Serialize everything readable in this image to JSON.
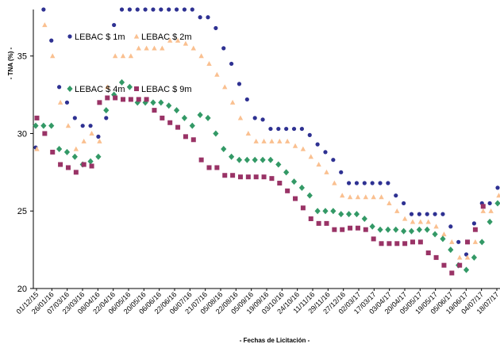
{
  "chart_data": {
    "type": "scatter",
    "xlabel": "- Fechas de Licitación -",
    "ylabel": "- TNA (%) -",
    "ylim": [
      20,
      38
    ],
    "yticks": [
      20,
      25,
      30,
      35
    ],
    "xlim": [
      "2015-12-01",
      "2017-07-18"
    ],
    "xtick_labels": [
      "01/12/15",
      "26/01/16",
      "07/03/16",
      "23/03/16",
      "08/04/16",
      "22/04/16",
      "06/05/16",
      "20/05/16",
      "06/06/16",
      "22/06/16",
      "06/07/16",
      "21/07/16",
      "05/08/16",
      "22/08/16",
      "05/09/16",
      "19/09/16",
      "03/10/16",
      "24/10/16",
      "11/11/16",
      "29/11/16",
      "27/12/16",
      "02/03/17",
      "17/03/17",
      "03/04/17",
      "20/04/17",
      "05/05/17",
      "19/05/17",
      "05/06/17",
      "19/06/17",
      "04/07/17",
      "18/07/17"
    ],
    "grid": false,
    "series": [
      {
        "name": "LEBAC $ 1m",
        "color": "#2E3192",
        "marker": "circle",
        "points": [
          [
            0,
            29.1
          ],
          [
            1,
            38.0
          ],
          [
            2,
            36.0
          ],
          [
            3,
            33.0
          ],
          [
            4,
            32.0
          ],
          [
            5,
            31.0
          ],
          [
            6,
            30.5
          ],
          [
            7,
            30.5
          ],
          [
            8,
            29.8
          ],
          [
            9,
            31.0
          ],
          [
            10,
            37.0
          ],
          [
            11,
            38.0
          ],
          [
            12,
            38.0
          ],
          [
            13,
            38.0
          ],
          [
            14,
            38.0
          ],
          [
            15,
            38.0
          ],
          [
            16,
            38.0
          ],
          [
            17,
            38.0
          ],
          [
            18,
            38.0
          ],
          [
            19,
            38.0
          ],
          [
            20,
            38.0
          ],
          [
            21,
            37.5
          ],
          [
            22,
            37.5
          ],
          [
            23,
            36.8
          ],
          [
            24,
            35.5
          ],
          [
            25,
            34.5
          ],
          [
            26,
            33.2
          ],
          [
            27,
            32.2
          ],
          [
            28,
            31.0
          ],
          [
            29,
            30.9
          ],
          [
            30,
            30.3
          ],
          [
            31,
            30.3
          ],
          [
            32,
            30.3
          ],
          [
            33,
            30.3
          ],
          [
            34,
            30.3
          ],
          [
            35,
            29.9
          ],
          [
            36,
            29.3
          ],
          [
            37,
            28.8
          ],
          [
            38,
            28.3
          ],
          [
            39,
            27.5
          ],
          [
            40,
            26.8
          ],
          [
            41,
            26.8
          ],
          [
            42,
            26.8
          ],
          [
            43,
            26.8
          ],
          [
            44,
            26.8
          ],
          [
            45,
            26.8
          ],
          [
            46,
            26.0
          ],
          [
            47,
            25.5
          ],
          [
            48,
            24.8
          ],
          [
            49,
            24.8
          ],
          [
            50,
            24.8
          ],
          [
            51,
            24.8
          ],
          [
            52,
            24.8
          ],
          [
            53,
            24.0
          ],
          [
            54,
            23.0
          ],
          [
            55,
            22.2
          ],
          [
            56,
            24.2
          ],
          [
            57,
            25.5
          ],
          [
            58,
            25.5
          ],
          [
            59,
            26.5
          ]
        ]
      },
      {
        "name": "LEBAC $ 2m",
        "color": "#FAC090",
        "marker": "triangle",
        "points": [
          [
            0,
            29.0
          ],
          [
            1,
            37.0
          ],
          [
            2,
            35.0
          ],
          [
            3,
            32.0
          ],
          [
            4,
            30.5
          ],
          [
            5,
            29.0
          ],
          [
            6,
            29.5
          ],
          [
            7,
            30.0
          ],
          [
            8,
            29.5
          ],
          [
            9,
            33.0
          ],
          [
            10,
            35.0
          ],
          [
            11,
            35.0
          ],
          [
            12,
            35.0
          ],
          [
            13,
            35.5
          ],
          [
            14,
            35.5
          ],
          [
            15,
            35.5
          ],
          [
            16,
            35.5
          ],
          [
            17,
            36.0
          ],
          [
            18,
            36.0
          ],
          [
            19,
            35.8
          ],
          [
            20,
            35.5
          ],
          [
            21,
            35.0
          ],
          [
            22,
            34.5
          ],
          [
            23,
            33.8
          ],
          [
            24,
            33.0
          ],
          [
            25,
            32.0
          ],
          [
            26,
            31.0
          ],
          [
            27,
            30.0
          ],
          [
            28,
            29.5
          ],
          [
            29,
            29.5
          ],
          [
            30,
            29.5
          ],
          [
            31,
            29.5
          ],
          [
            32,
            29.5
          ],
          [
            33,
            29.2
          ],
          [
            34,
            29.0
          ],
          [
            35,
            28.5
          ],
          [
            36,
            28.0
          ],
          [
            37,
            27.5
          ],
          [
            38,
            26.8
          ],
          [
            39,
            26.0
          ],
          [
            40,
            25.9
          ],
          [
            41,
            25.9
          ],
          [
            42,
            25.9
          ],
          [
            43,
            25.9
          ],
          [
            44,
            25.9
          ],
          [
            45,
            25.5
          ],
          [
            46,
            25.0
          ],
          [
            47,
            24.5
          ],
          [
            48,
            24.3
          ],
          [
            49,
            24.3
          ],
          [
            50,
            24.3
          ],
          [
            51,
            24.0
          ],
          [
            52,
            23.5
          ],
          [
            53,
            23.0
          ],
          [
            54,
            22.0
          ],
          [
            55,
            22.0
          ],
          [
            56,
            23.0
          ],
          [
            57,
            25.0
          ],
          [
            58,
            25.0
          ],
          [
            59,
            26.0
          ]
        ]
      },
      {
        "name": "LEBAC $ 4m",
        "color": "#339966",
        "marker": "diamond",
        "points": [
          [
            0,
            30.5
          ],
          [
            1,
            30.5
          ],
          [
            2,
            30.5
          ],
          [
            3,
            29.0
          ],
          [
            4,
            28.8
          ],
          [
            5,
            28.5
          ],
          [
            6,
            28.0
          ],
          [
            7,
            28.2
          ],
          [
            8,
            28.5
          ],
          [
            9,
            31.5
          ],
          [
            10,
            32.5
          ],
          [
            11,
            33.3
          ],
          [
            12,
            33.0
          ],
          [
            13,
            32.0
          ],
          [
            14,
            32.0
          ],
          [
            15,
            32.0
          ],
          [
            16,
            32.0
          ],
          [
            17,
            31.8
          ],
          [
            18,
            31.5
          ],
          [
            19,
            31.0
          ],
          [
            20,
            30.5
          ],
          [
            21,
            31.2
          ],
          [
            22,
            31.0
          ],
          [
            23,
            30.0
          ],
          [
            24,
            29.0
          ],
          [
            25,
            28.5
          ],
          [
            26,
            28.3
          ],
          [
            27,
            28.3
          ],
          [
            28,
            28.3
          ],
          [
            29,
            28.3
          ],
          [
            30,
            28.3
          ],
          [
            31,
            28.0
          ],
          [
            32,
            27.5
          ],
          [
            33,
            26.9
          ],
          [
            34,
            26.5
          ],
          [
            35,
            26.0
          ],
          [
            36,
            25.0
          ],
          [
            37,
            25.0
          ],
          [
            38,
            25.0
          ],
          [
            39,
            24.8
          ],
          [
            40,
            24.8
          ],
          [
            41,
            24.8
          ],
          [
            42,
            24.5
          ],
          [
            43,
            24.0
          ],
          [
            44,
            23.8
          ],
          [
            45,
            23.8
          ],
          [
            46,
            23.8
          ],
          [
            47,
            23.7
          ],
          [
            48,
            23.7
          ],
          [
            49,
            23.8
          ],
          [
            50,
            23.8
          ],
          [
            51,
            23.5
          ],
          [
            52,
            23.2
          ],
          [
            53,
            22.5
          ],
          [
            54,
            21.5
          ],
          [
            55,
            21.2
          ],
          [
            56,
            22.0
          ],
          [
            57,
            23.0
          ],
          [
            58,
            24.3
          ],
          [
            59,
            25.5
          ]
        ]
      },
      {
        "name": "LEBAC $ 9m",
        "color": "#993366",
        "marker": "square",
        "points": [
          [
            0,
            31.0
          ],
          [
            1,
            30.0
          ],
          [
            2,
            28.8
          ],
          [
            3,
            28.0
          ],
          [
            4,
            27.8
          ],
          [
            5,
            27.5
          ],
          [
            6,
            28.0
          ],
          [
            7,
            27.9
          ],
          [
            8,
            32.0
          ],
          [
            9,
            32.3
          ],
          [
            10,
            32.3
          ],
          [
            11,
            32.2
          ],
          [
            12,
            32.2
          ],
          [
            13,
            32.2
          ],
          [
            14,
            32.2
          ],
          [
            15,
            31.5
          ],
          [
            16,
            31.0
          ],
          [
            17,
            30.7
          ],
          [
            18,
            30.4
          ],
          [
            19,
            29.8
          ],
          [
            20,
            29.6
          ],
          [
            21,
            28.3
          ],
          [
            22,
            27.8
          ],
          [
            23,
            27.8
          ],
          [
            24,
            27.3
          ],
          [
            25,
            27.3
          ],
          [
            26,
            27.2
          ],
          [
            27,
            27.2
          ],
          [
            28,
            27.2
          ],
          [
            29,
            27.2
          ],
          [
            30,
            27.1
          ],
          [
            31,
            26.8
          ],
          [
            32,
            26.3
          ],
          [
            33,
            25.8
          ],
          [
            34,
            25.2
          ],
          [
            35,
            24.5
          ],
          [
            36,
            24.2
          ],
          [
            37,
            24.2
          ],
          [
            38,
            23.8
          ],
          [
            39,
            23.8
          ],
          [
            40,
            23.9
          ],
          [
            41,
            23.9
          ],
          [
            42,
            23.8
          ],
          [
            43,
            23.2
          ],
          [
            44,
            22.9
          ],
          [
            45,
            22.9
          ],
          [
            46,
            22.9
          ],
          [
            47,
            22.9
          ],
          [
            48,
            23.0
          ],
          [
            49,
            23.0
          ],
          [
            50,
            22.3
          ],
          [
            51,
            22.0
          ],
          [
            52,
            21.5
          ],
          [
            53,
            21.0
          ],
          [
            54,
            21.5
          ],
          [
            55,
            23.0
          ],
          [
            56,
            23.8
          ],
          [
            57,
            25.3
          ]
        ]
      }
    ]
  }
}
